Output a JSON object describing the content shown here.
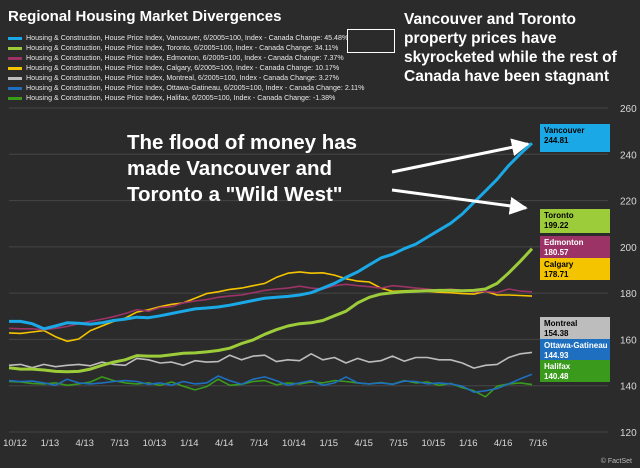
{
  "title": "Regional Housing Market Divergences",
  "headline": "Vancouver and Toronto property prices have skyrocketed while the rest of Canada have been stagnant",
  "annotation": [
    "The flood of money has",
    "made Vancouver and",
    "Toronto a \"Wild West\""
  ],
  "source": "© FactSet",
  "legend": [
    {
      "label": "Housing & Construction, House Price Index, Vancouver, 6/2005=100, Index - Canada Change: 45.48%",
      "color": "#1aa9e6"
    },
    {
      "label": "Housing & Construction, House Price Index, Toronto, 6/2005=100, Index - Canada Change: 34.11%",
      "color": "#9ccc3a"
    },
    {
      "label": "Housing & Construction, House Price Index, Edmonton, 6/2005=100, Index - Canada Change: 7.37%",
      "color": "#9c3366"
    },
    {
      "label": "Housing & Construction, House Price Index, Calgary, 6/2005=100, Index - Canada Change: 10.17%",
      "color": "#f5c400"
    },
    {
      "label": "Housing & Construction, House Price Index, Montreal, 6/2005=100, Index - Canada Change: 3.27%",
      "color": "#bdbdbd"
    },
    {
      "label": "Housing & Construction, House Price Index, Ottawa-Gatineau, 6/2005=100, Index - Canada Change: 2.11%",
      "color": "#1e6fc0"
    },
    {
      "label": "Housing & Construction, House Price Index, Halifax, 6/2005=100, Index - Canada Change: -1.38%",
      "color": "#3a9a1c"
    }
  ],
  "chart_data": {
    "type": "line",
    "title": "Regional Housing Market Divergences",
    "xlabel": "",
    "ylabel": "",
    "ylim": [
      120,
      260
    ],
    "yticks": [
      120,
      140,
      160,
      180,
      200,
      220,
      240,
      260
    ],
    "xlim": [
      0,
      45
    ],
    "xticks": [
      {
        "label": "10/12",
        "x": 0
      },
      {
        "label": "1/13",
        "x": 3
      },
      {
        "label": "4/13",
        "x": 6
      },
      {
        "label": "7/13",
        "x": 9
      },
      {
        "label": "10/13",
        "x": 12
      },
      {
        "label": "1/14",
        "x": 15
      },
      {
        "label": "4/14",
        "x": 18
      },
      {
        "label": "7/14",
        "x": 21
      },
      {
        "label": "10/14",
        "x": 24
      },
      {
        "label": "1/15",
        "x": 27
      },
      {
        "label": "4/15",
        "x": 30
      },
      {
        "label": "7/15",
        "x": 33
      },
      {
        "label": "10/15",
        "x": 36
      },
      {
        "label": "1/16",
        "x": 39
      },
      {
        "label": "4/16",
        "x": 42
      },
      {
        "label": "7/16",
        "x": 45
      }
    ],
    "series": [
      {
        "name": "Vancouver",
        "color": "#1aa9e6",
        "last_label": "244.81",
        "values": [
          167.8,
          167.8,
          166.8,
          164.6,
          165.8,
          167.2,
          167.0,
          166.6,
          167.2,
          168.2,
          168.8,
          169.6,
          169.4,
          170.2,
          171.2,
          172.2,
          173.2,
          173.6,
          174.0,
          174.8,
          175.8,
          176.8,
          177.8,
          178.2,
          178.6,
          179.2,
          180.2,
          182.2,
          184.2,
          186.8,
          189.2,
          192.2,
          195.2,
          196.8,
          199.2,
          201.2,
          204.2,
          207.2,
          210.2,
          214.2,
          219.2,
          224.2,
          229.2,
          235.2,
          240.2,
          244.81
        ]
      },
      {
        "name": "Toronto",
        "color": "#9ccc3a",
        "last_label": "199.22",
        "values": [
          147.8,
          147.2,
          147.2,
          146.8,
          146.2,
          146.0,
          146.2,
          147.2,
          148.8,
          150.2,
          151.2,
          153.0,
          152.8,
          152.8,
          153.4,
          154.0,
          154.2,
          154.6,
          155.2,
          156.2,
          158.2,
          159.8,
          162.2,
          164.2,
          165.8,
          166.8,
          167.2,
          168.2,
          170.2,
          172.2,
          175.8,
          178.2,
          179.6,
          180.2,
          180.6,
          180.8,
          181.0,
          181.2,
          181.2,
          181.0,
          181.2,
          181.8,
          184.2,
          188.8,
          193.8,
          199.22
        ]
      },
      {
        "name": "Edmonton",
        "color": "#9c3366",
        "last_label": "180.57",
        "values": [
          164.8,
          164.6,
          164.6,
          164.2,
          164.8,
          165.6,
          166.8,
          167.8,
          168.8,
          169.8,
          171.2,
          172.8,
          172.2,
          173.8,
          174.2,
          175.8,
          176.6,
          177.2,
          178.2,
          178.8,
          179.2,
          180.2,
          181.2,
          181.8,
          182.2,
          183.0,
          182.2,
          181.8,
          183.2,
          183.8,
          183.2,
          182.8,
          182.2,
          183.2,
          182.8,
          182.2,
          181.8,
          181.2,
          181.8,
          181.2,
          180.6,
          180.8,
          180.2,
          181.8,
          180.9,
          180.57
        ]
      },
      {
        "name": "Calgary",
        "color": "#f5c400",
        "last_label": "178.71",
        "values": [
          162.8,
          162.6,
          163.2,
          163.8,
          161.2,
          159.2,
          160.2,
          163.8,
          165.8,
          167.8,
          169.2,
          171.8,
          172.8,
          174.2,
          175.2,
          175.8,
          177.8,
          179.8,
          180.6,
          181.6,
          182.2,
          183.2,
          184.2,
          186.8,
          188.6,
          189.2,
          188.6,
          188.8,
          187.8,
          186.2,
          185.2,
          184.8,
          182.2,
          180.8,
          181.0,
          181.2,
          180.8,
          180.4,
          180.2,
          179.8,
          179.6,
          180.8,
          179.2,
          179.2,
          179.0,
          178.71
        ]
      },
      {
        "name": "Montreal",
        "color": "#bdbdbd",
        "last_label": "154.38",
        "values": [
          148.8,
          149.2,
          147.8,
          149.2,
          148.2,
          148.8,
          149.2,
          148.6,
          150.2,
          149.2,
          148.8,
          151.8,
          151.2,
          149.8,
          150.2,
          148.8,
          150.8,
          150.2,
          150.4,
          153.2,
          151.2,
          152.8,
          153.2,
          150.4,
          151.2,
          150.8,
          153.8,
          151.2,
          152.2,
          149.8,
          151.8,
          150.2,
          150.8,
          152.8,
          150.6,
          152.2,
          152.2,
          151.2,
          151.2,
          149.8,
          147.6,
          148.8,
          149.2,
          152.2,
          153.8,
          154.38
        ]
      },
      {
        "name": "Ottawa-Gatineau",
        "color": "#1e6fc0",
        "last_label": "144.93",
        "values": [
          142.2,
          141.8,
          142.0,
          141.2,
          140.2,
          142.8,
          141.2,
          140.8,
          141.2,
          141.8,
          142.2,
          141.8,
          140.6,
          141.2,
          140.2,
          141.8,
          140.8,
          141.2,
          144.2,
          142.2,
          140.6,
          142.8,
          143.8,
          142.2,
          140.2,
          141.2,
          142.2,
          140.2,
          141.2,
          143.8,
          141.2,
          140.8,
          141.2,
          140.6,
          142.0,
          141.8,
          140.8,
          141.2,
          140.8,
          139.8,
          137.2,
          137.8,
          138.8,
          140.8,
          143.0,
          144.93
        ]
      },
      {
        "name": "Halifax",
        "color": "#3a9a1c",
        "last_label": "140.48",
        "values": [
          141.8,
          141.6,
          141.0,
          140.8,
          141.2,
          140.2,
          140.8,
          141.6,
          143.8,
          142.2,
          141.2,
          140.8,
          141.2,
          140.2,
          141.6,
          139.8,
          138.2,
          139.6,
          142.8,
          140.2,
          140.6,
          141.8,
          142.2,
          140.4,
          141.2,
          140.8,
          141.6,
          141.2,
          142.2,
          141.8,
          141.2,
          140.8,
          141.4,
          140.6,
          142.2,
          141.2,
          141.6,
          140.2,
          141.0,
          139.2,
          137.8,
          135.2,
          139.8,
          140.8,
          141.2,
          140.48
        ]
      }
    ],
    "end_labels": [
      {
        "name": "Vancouver",
        "value": "244.81",
        "color": "#1aa9e6",
        "text_color": "#000"
      },
      {
        "name": "Toronto",
        "value": "199.22",
        "color": "#9ccc3a",
        "text_color": "#000"
      },
      {
        "name": "Edmonton",
        "value": "180.57",
        "color": "#9c3366",
        "text_color": "#fff"
      },
      {
        "name": "Calgary",
        "value": "178.71",
        "color": "#f5c400",
        "text_color": "#000"
      },
      {
        "name": "Montreal",
        "value": "154.38",
        "color": "#bdbdbd",
        "text_color": "#000"
      },
      {
        "name": "Ottawa-Gatineau",
        "value": "144.93",
        "color": "#1e6fc0",
        "text_color": "#fff"
      },
      {
        "name": "Halifax",
        "value": "140.48",
        "color": "#3a9a1c",
        "text_color": "#fff"
      }
    ]
  }
}
